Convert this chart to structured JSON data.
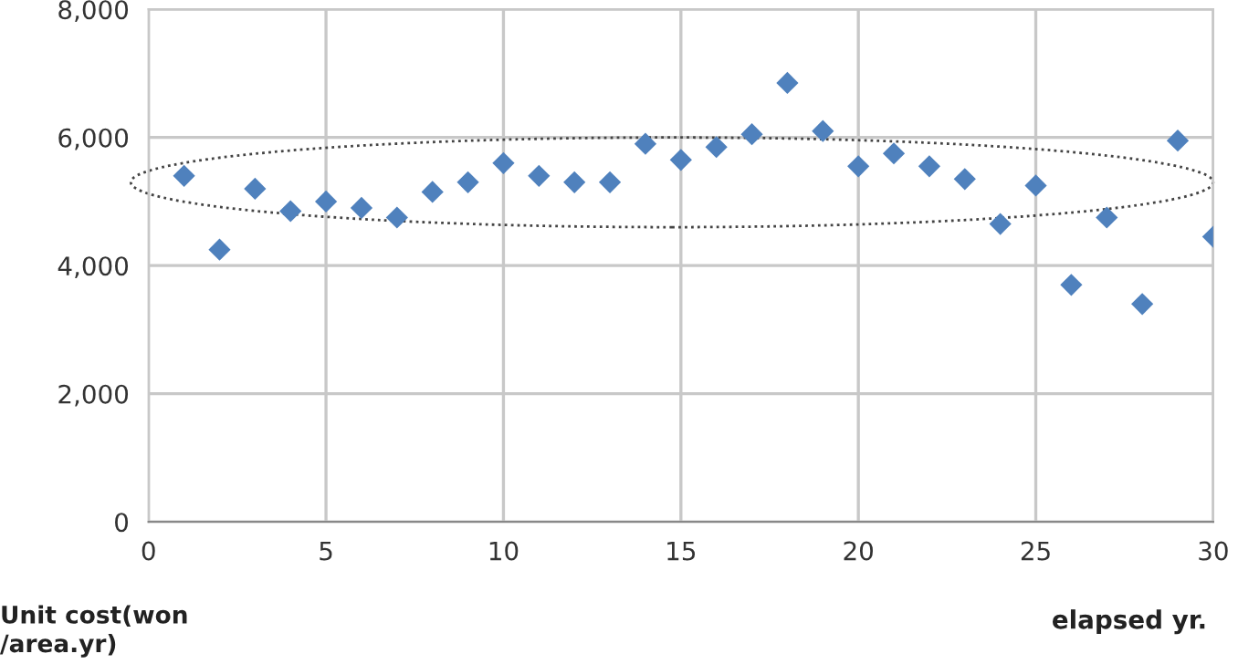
{
  "chart_data": {
    "type": "scatter",
    "xlabel": "elapsed yr.",
    "ylabel": "Unit cost(won\n/area.yr)",
    "x": [
      1,
      2,
      3,
      4,
      5,
      6,
      7,
      8,
      9,
      10,
      11,
      12,
      13,
      14,
      15,
      16,
      17,
      18,
      19,
      20,
      21,
      22,
      23,
      24,
      25,
      26,
      27,
      28,
      29,
      30
    ],
    "series": [
      {
        "color": "#4f81bd",
        "values": [
          5400,
          4250,
          5200,
          4850,
          5000,
          4900,
          4750,
          5150,
          5300,
          5600,
          5400,
          5300,
          5300,
          5900,
          5650,
          5850,
          6050,
          6850,
          6100,
          5550,
          5750,
          5550,
          5350,
          4650,
          5250,
          3700,
          4750,
          3400,
          5950,
          4450
        ]
      }
    ],
    "marker": "diamond",
    "xlim": [
      0,
      30
    ],
    "xticks": [
      0,
      5,
      10,
      15,
      20,
      25,
      30
    ],
    "ylim": [
      0,
      8000
    ],
    "yticks": [
      {
        "value": 0,
        "label": "0"
      },
      {
        "value": 2000,
        "label": "2,000"
      },
      {
        "value": 4000,
        "label": "4,000"
      },
      {
        "value": 6000,
        "label": "6,000"
      },
      {
        "value": 8000,
        "label": "8,000"
      }
    ],
    "grid": true,
    "legend": false
  }
}
